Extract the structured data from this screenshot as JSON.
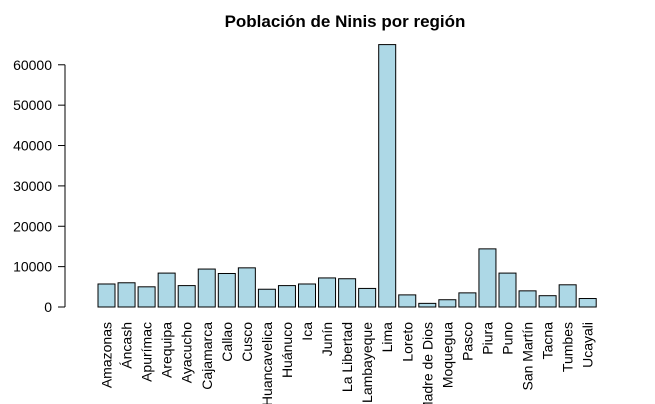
{
  "chart_data": {
    "type": "bar",
    "title": "Población de Ninis por región",
    "xlabel": "",
    "ylabel": "",
    "bar_color": "#add8e6",
    "border_color": "#000000",
    "grid": false,
    "ylim": [
      0,
      65000
    ],
    "yticks": [
      0,
      10000,
      20000,
      30000,
      40000,
      50000,
      60000
    ],
    "ytick_labels": [
      "0",
      "10000",
      "20000",
      "30000",
      "40000",
      "50000",
      "60000"
    ],
    "categories": [
      "Amazonas",
      "Áncash",
      "Apurímac",
      "Arequipa",
      "Ayacucho",
      "Cajamarca",
      "Callao",
      "Cusco",
      "Huancavelica",
      "Huánuco",
      "Ica",
      "Junín",
      "La Libertad",
      "Lambayeque",
      "Lima",
      "Loreto",
      "Madre de Dios",
      "Moquegua",
      "Pasco",
      "Piura",
      "Puno",
      "San Martín",
      "Tacna",
      "Tumbes",
      "Ucayali"
    ],
    "values": [
      5700,
      6000,
      5000,
      8400,
      5300,
      9400,
      8300,
      9700,
      4400,
      5300,
      5700,
      7200,
      7000,
      4600,
      65000,
      3000,
      900,
      1800,
      3500,
      14400,
      8400,
      4000,
      2800,
      5500,
      2100
    ]
  }
}
